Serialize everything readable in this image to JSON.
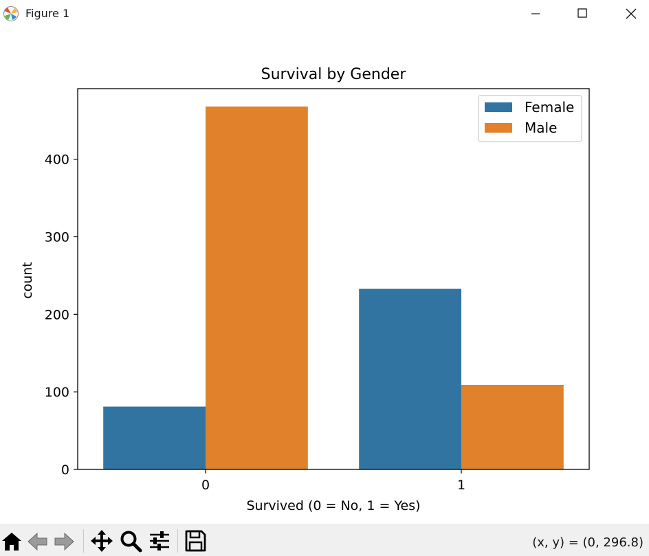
{
  "window": {
    "title": "Figure 1"
  },
  "toolbar": {
    "buttons": [
      "home-icon",
      "back-icon",
      "forward-icon",
      "pan-icon",
      "zoom-icon",
      "configure-subplots-icon",
      "save-icon"
    ],
    "coords": "(x, y) = (0, 296.8)"
  },
  "chart_data": {
    "type": "bar",
    "title": "Survival by Gender",
    "xlabel": "Survived (0 = No, 1 = Yes)",
    "ylabel": "count",
    "categories": [
      "0",
      "1"
    ],
    "series": [
      {
        "name": "Female",
        "color": "#3274a1",
        "values": [
          81,
          233
        ]
      },
      {
        "name": "Male",
        "color": "#e1812c",
        "values": [
          468,
          109
        ]
      }
    ],
    "ylim": [
      0,
      491
    ],
    "yticks": [
      "0",
      "100",
      "200",
      "300",
      "400"
    ],
    "legend": "top-right",
    "grid": false
  }
}
